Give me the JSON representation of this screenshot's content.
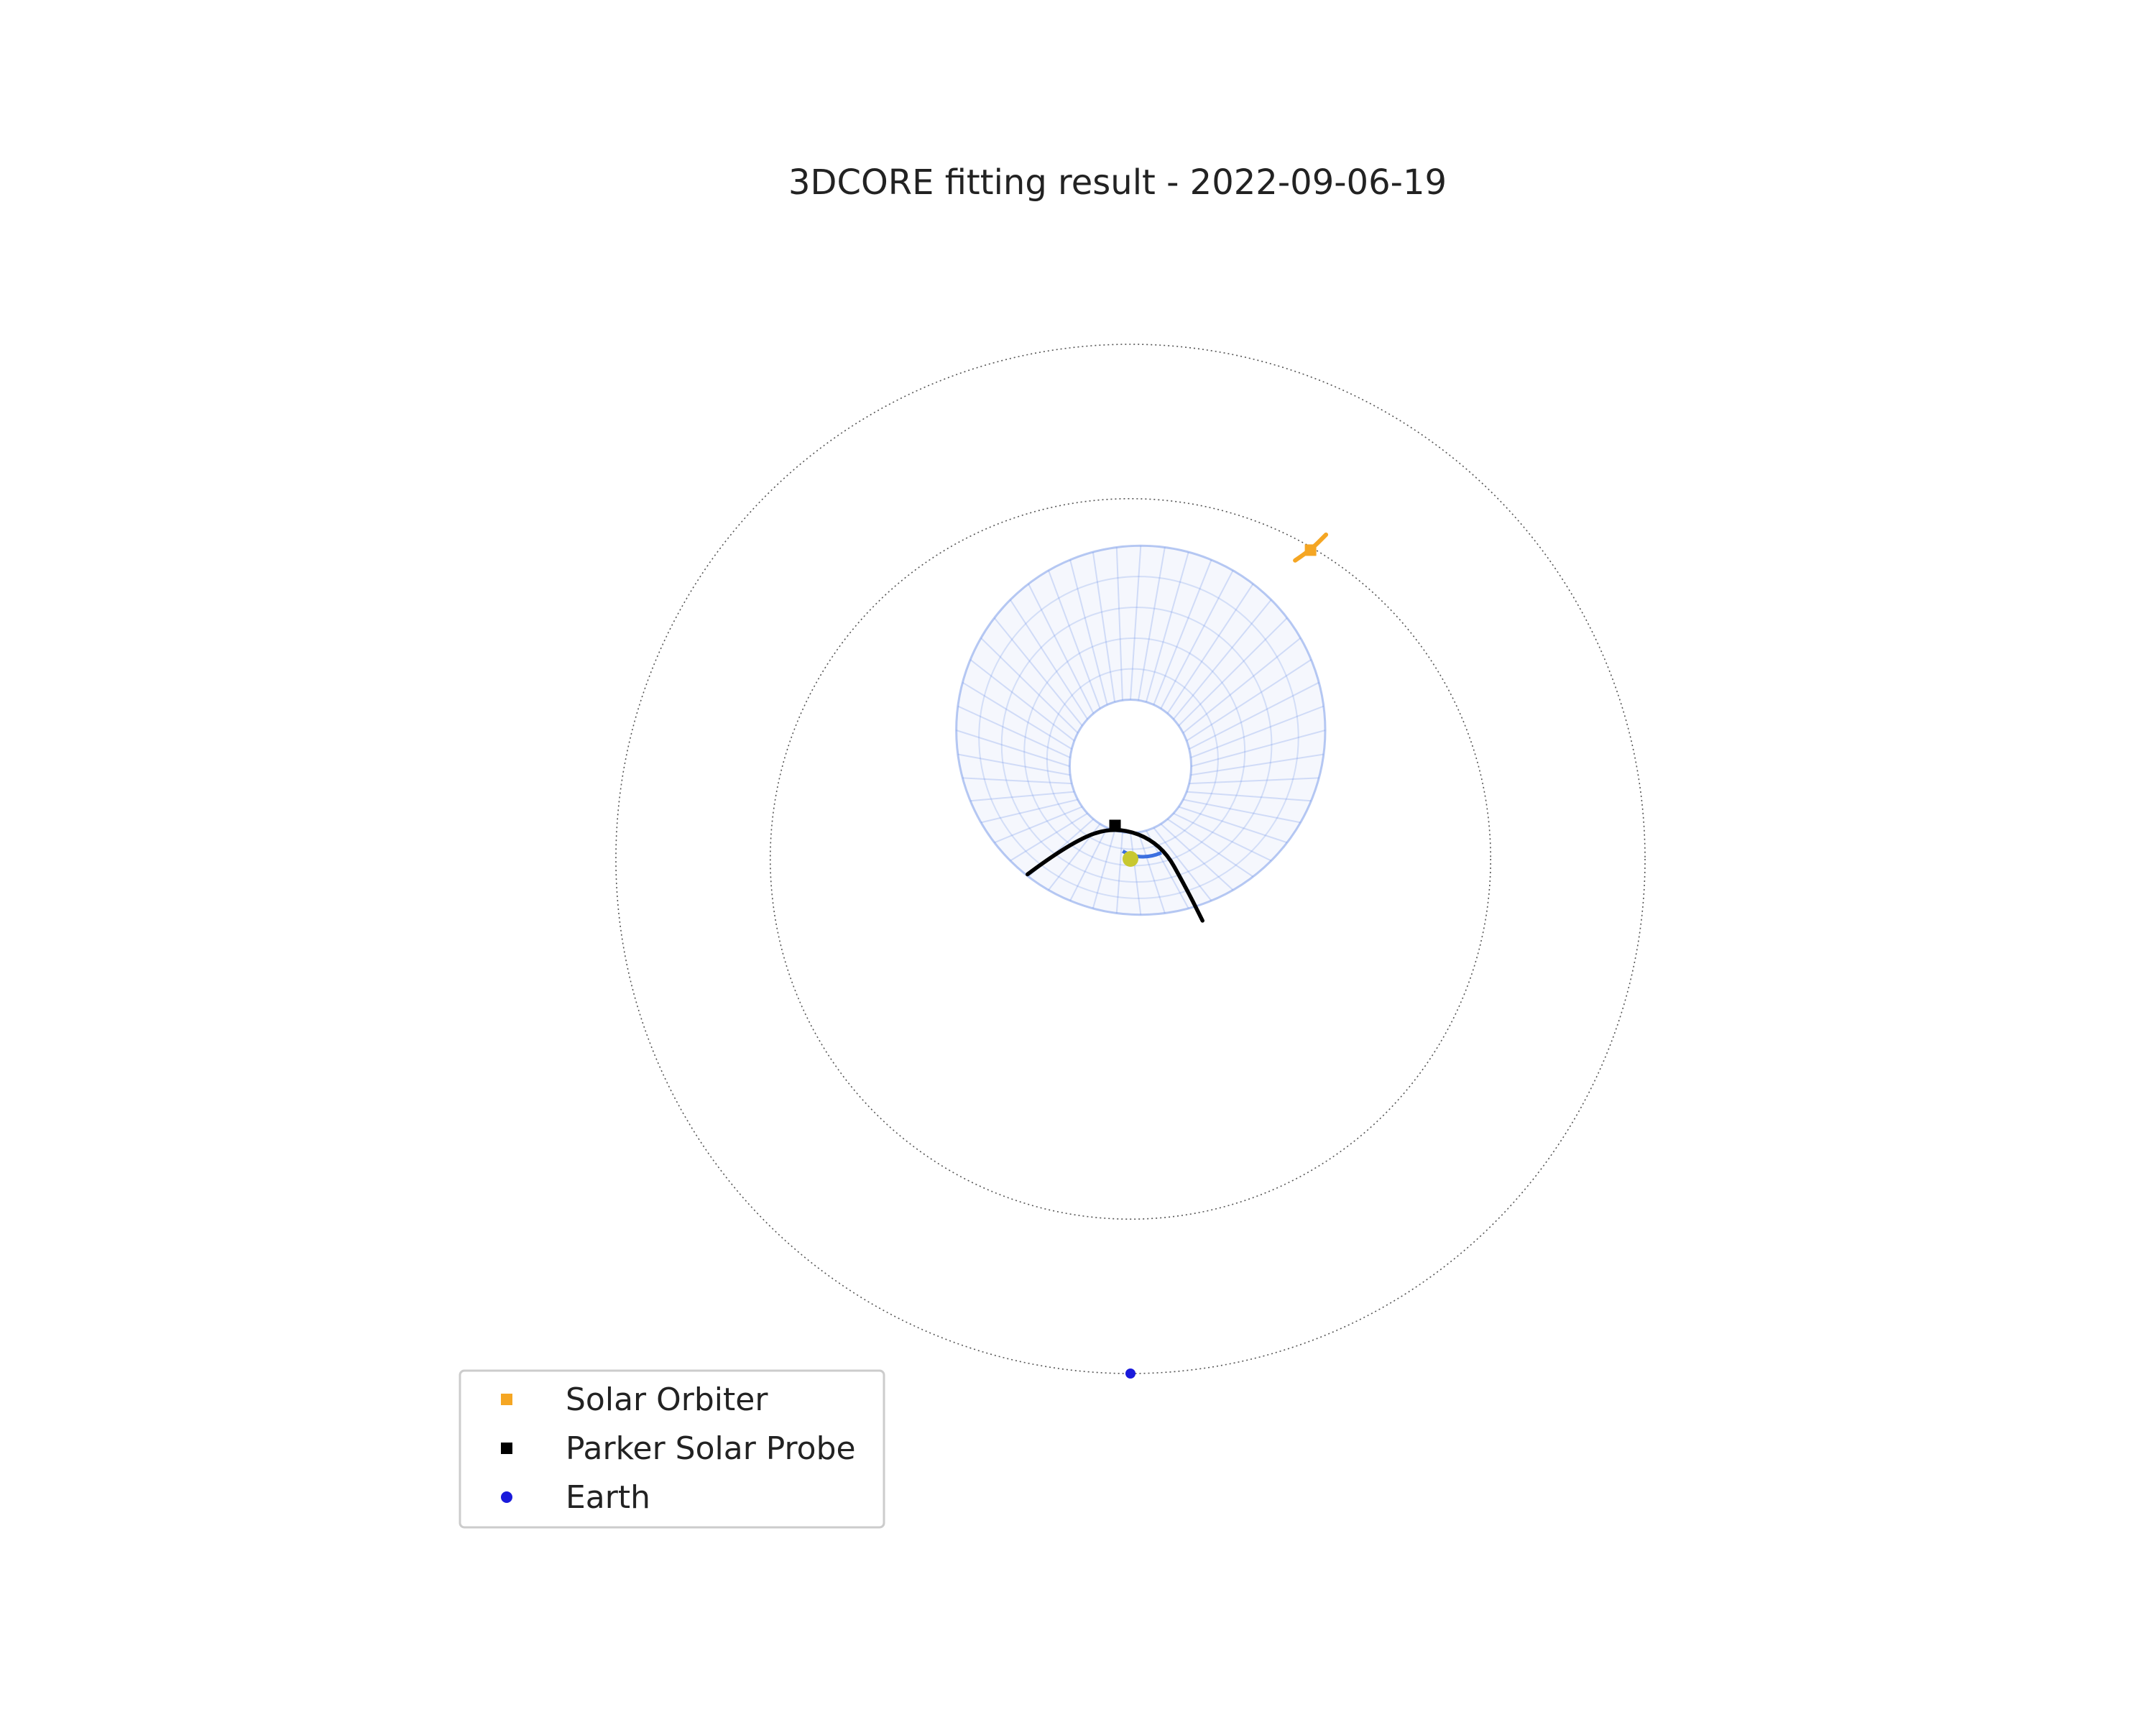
{
  "chart_data": {
    "type": "scatter",
    "title": "3DCORE fitting result - 2022-09-06-19",
    "xlabel": "",
    "ylabel": "",
    "axes_visible": false,
    "grid": false,
    "xlim": [
      -1.3,
      1.3
    ],
    "ylim": [
      -1.3,
      1.3
    ],
    "orbit_rings_au": [
      1.0,
      0.7
    ],
    "orbit_ring_style": "dotted",
    "legend_position": "lower-left",
    "sun": {
      "x": 0,
      "y": 0,
      "color": "#c8c830"
    },
    "series": [
      {
        "name": "Solar Orbiter",
        "marker": "square",
        "color": "#f5a623",
        "points": [
          {
            "x": 0.35,
            "y": 0.6
          }
        ],
        "trajectory": [
          {
            "x": 0.32,
            "y": 0.58
          },
          {
            "x": 0.35,
            "y": 0.6
          },
          {
            "x": 0.38,
            "y": 0.63
          }
        ]
      },
      {
        "name": "Parker Solar Probe",
        "marker": "square",
        "color": "#000000",
        "points": [
          {
            "x": -0.03,
            "y": 0.065
          }
        ],
        "trajectory": [
          {
            "x": -0.2,
            "y": -0.03
          },
          {
            "x": -0.12,
            "y": 0.03
          },
          {
            "x": -0.03,
            "y": 0.065
          },
          {
            "x": 0.06,
            "y": 0.03
          },
          {
            "x": 0.11,
            "y": -0.06
          },
          {
            "x": 0.14,
            "y": -0.12
          }
        ]
      },
      {
        "name": "Earth",
        "marker": "circle",
        "color": "#1a1adb",
        "points": [
          {
            "x": 0,
            "y": -1.0
          }
        ]
      }
    ],
    "flux_rope": {
      "model": "3DCORE",
      "color": "#6f93e8",
      "apex_distance_au": 0.5,
      "leg_separation_au": 0.0,
      "half_width_au": 0.26
    }
  }
}
